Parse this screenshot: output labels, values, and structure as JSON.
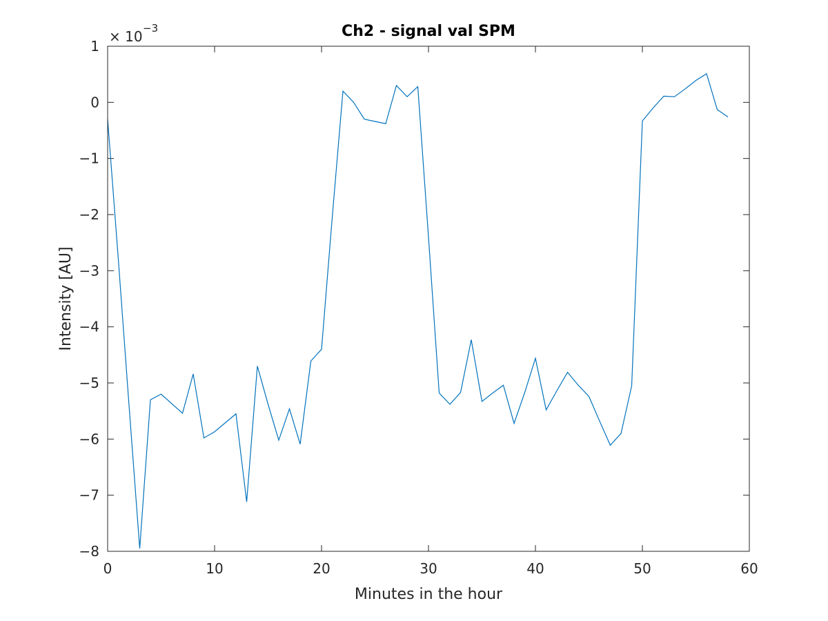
{
  "chart_data": {
    "type": "line",
    "title": "Ch2 - signal val SPM",
    "xlabel": "Minutes in the hour",
    "ylabel": "Intensity [AU]",
    "exponent_base": "× 10",
    "exponent_power": "−3",
    "xlim": [
      0,
      60
    ],
    "ylim": [
      -8,
      1
    ],
    "xticks": [
      0,
      10,
      20,
      30,
      40,
      50,
      60
    ],
    "yticks": [
      -8,
      -7,
      -6,
      -5,
      -4,
      -3,
      -2,
      -1,
      0,
      1
    ],
    "grid": false,
    "series_color": "#0072BD",
    "series": [
      {
        "x": [
          0,
          1,
          2,
          3,
          4,
          5,
          6,
          7,
          8,
          9,
          10,
          11,
          12,
          13,
          14,
          15,
          16,
          17,
          18,
          19,
          20,
          21,
          22,
          23,
          24,
          25,
          26,
          27,
          28,
          29,
          30,
          31,
          32,
          33,
          34,
          35,
          36,
          37,
          38,
          39,
          40,
          41,
          42,
          43,
          44,
          45,
          46,
          47,
          48,
          49,
          50,
          51,
          52,
          53,
          54,
          55,
          56,
          57,
          58
        ],
        "values": [
          -0.3,
          -2.8,
          -5.4,
          -7.95,
          -5.3,
          -5.2,
          -5.37,
          -5.54,
          -4.84,
          -5.98,
          -5.87,
          -5.71,
          -5.55,
          -7.12,
          -4.7,
          -5.38,
          -6.02,
          -5.46,
          -6.09,
          -4.61,
          -4.4,
          -2.05,
          0.2,
          0.0,
          -0.3,
          -0.34,
          -0.38,
          0.3,
          0.1,
          0.28,
          -2.4,
          -5.18,
          -5.38,
          -5.17,
          -4.23,
          -5.33,
          -5.18,
          -5.04,
          -5.72,
          -5.17,
          -4.56,
          -5.48,
          -5.14,
          -4.81,
          -5.04,
          -5.24,
          -5.68,
          -6.11,
          -5.9,
          -5.05,
          -0.33,
          -0.1,
          0.11,
          0.1,
          0.24,
          0.39,
          0.51,
          -0.13,
          -0.26
        ]
      }
    ]
  }
}
